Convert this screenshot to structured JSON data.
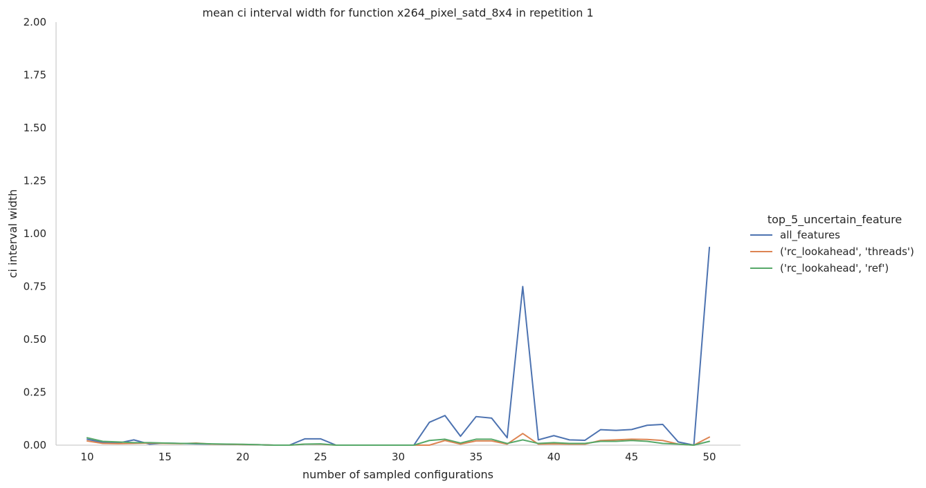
{
  "chart_data": {
    "type": "line",
    "title": "mean ci interval width for function x264_pixel_satd_8x4 in repetition 1",
    "xlabel": "number of sampled configurations",
    "ylabel": "ci interval width",
    "xlim": [
      8,
      52
    ],
    "ylim": [
      0,
      2.0
    ],
    "xticks": [
      10,
      15,
      20,
      25,
      30,
      35,
      40,
      45,
      50
    ],
    "xtick_labels": [
      "10",
      "15",
      "20",
      "25",
      "30",
      "35",
      "40",
      "45",
      "50"
    ],
    "yticks": [
      0,
      0.25,
      0.5,
      0.75,
      1.0,
      1.25,
      1.5,
      1.75,
      2.0
    ],
    "ytick_labels": [
      "0.00",
      "0.25",
      "0.50",
      "0.75",
      "1.00",
      "1.25",
      "1.50",
      "1.75",
      "2.00"
    ],
    "grid": false,
    "legend": {
      "title": "top_5_uncertain_feature",
      "placement": "right"
    },
    "x": [
      10,
      11,
      12,
      13,
      14,
      15,
      16,
      17,
      18,
      19,
      20,
      21,
      22,
      23,
      24,
      25,
      26,
      27,
      28,
      29,
      30,
      31,
      32,
      33,
      34,
      35,
      36,
      37,
      38,
      39,
      40,
      41,
      42,
      43,
      44,
      45,
      46,
      47,
      48,
      49,
      50
    ],
    "series": [
      {
        "name": "all_features",
        "color": "#4c72b0",
        "values": [
          0.028,
          0.012,
          0.01,
          0.025,
          0.005,
          0.01,
          0.008,
          0.006,
          0.005,
          0.004,
          0.003,
          0.002,
          0.0,
          0.0,
          0.03,
          0.03,
          0.0,
          0.0,
          0.0,
          0.0,
          0.0,
          0.0,
          0.108,
          0.14,
          0.042,
          0.135,
          0.128,
          0.035,
          0.75,
          0.025,
          0.045,
          0.025,
          0.023,
          0.073,
          0.07,
          0.074,
          0.094,
          0.098,
          0.015,
          0.0,
          0.935
        ]
      },
      {
        "name": "('rc_lookahead', 'threads')",
        "color": "#dd8452",
        "values": [
          0.02,
          0.008,
          0.007,
          0.008,
          0.01,
          0.008,
          0.007,
          0.01,
          0.005,
          0.004,
          0.003,
          0.002,
          0.0,
          0.0,
          0.005,
          0.005,
          0.0,
          0.0,
          0.0,
          0.0,
          0.0,
          0.0,
          0.0,
          0.022,
          0.005,
          0.02,
          0.02,
          0.005,
          0.055,
          0.005,
          0.006,
          0.005,
          0.005,
          0.022,
          0.025,
          0.028,
          0.027,
          0.022,
          0.005,
          0.0,
          0.038
        ]
      },
      {
        "name": "('rc_lookahead', 'ref')",
        "color": "#55a868",
        "values": [
          0.035,
          0.018,
          0.015,
          0.012,
          0.012,
          0.01,
          0.008,
          0.008,
          0.006,
          0.005,
          0.004,
          0.002,
          0.0,
          0.0,
          0.005,
          0.006,
          0.0,
          0.0,
          0.0,
          0.0,
          0.0,
          0.0,
          0.022,
          0.028,
          0.01,
          0.028,
          0.028,
          0.008,
          0.025,
          0.008,
          0.012,
          0.008,
          0.008,
          0.018,
          0.018,
          0.022,
          0.018,
          0.008,
          0.005,
          0.0,
          0.018
        ]
      }
    ]
  }
}
